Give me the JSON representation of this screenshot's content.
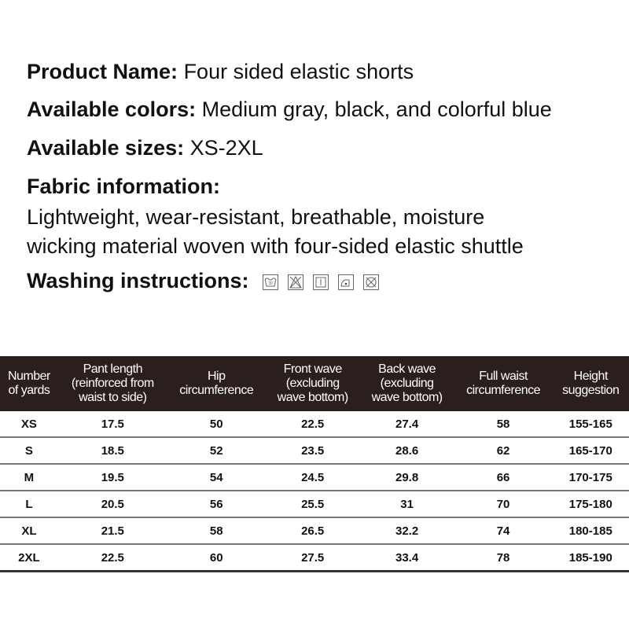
{
  "product": {
    "label": "Product Name:",
    "value": "Four sided elastic shorts"
  },
  "colors": {
    "label": "Available colors:",
    "value": "Medium gray, black, and colorful blue"
  },
  "sizes": {
    "label": "Available sizes:",
    "value": "XS-2XL"
  },
  "fabric": {
    "label": "Fabric information:",
    "line1": "Lightweight, wear-resistant, breathable, moisture",
    "line2": "wicking material woven with four-sided elastic shuttle"
  },
  "washing": {
    "label": "Washing instructions:",
    "icons": [
      "wash-30-icon",
      "no-bleach-icon",
      "line-dry-icon",
      "iron-low-icon",
      "no-dryclean-icon"
    ],
    "wash_temp": "30"
  },
  "table": {
    "headers": [
      [
        "Number",
        "of yards"
      ],
      [
        "Pant length",
        "(reinforced from",
        "waist to side)"
      ],
      [
        "Hip",
        "circumference"
      ],
      [
        "Front wave",
        "(excluding",
        "wave bottom)"
      ],
      [
        "Back wave",
        "(excluding",
        "wave bottom)"
      ],
      [
        "Full waist",
        "circumference"
      ],
      [
        "Height",
        "suggestion"
      ]
    ],
    "rows": [
      [
        "XS",
        "17.5",
        "50",
        "22.5",
        "27.4",
        "58",
        "155-165"
      ],
      [
        "S",
        "18.5",
        "52",
        "23.5",
        "28.6",
        "62",
        "165-170"
      ],
      [
        "M",
        "19.5",
        "54",
        "24.5",
        "29.8",
        "66",
        "170-175"
      ],
      [
        "L",
        "20.5",
        "56",
        "25.5",
        "31",
        "70",
        "175-180"
      ],
      [
        "XL",
        "21.5",
        "58",
        "26.5",
        "32.2",
        "74",
        "180-185"
      ],
      [
        "2XL",
        "22.5",
        "60",
        "27.5",
        "33.4",
        "78",
        "185-190"
      ]
    ]
  }
}
